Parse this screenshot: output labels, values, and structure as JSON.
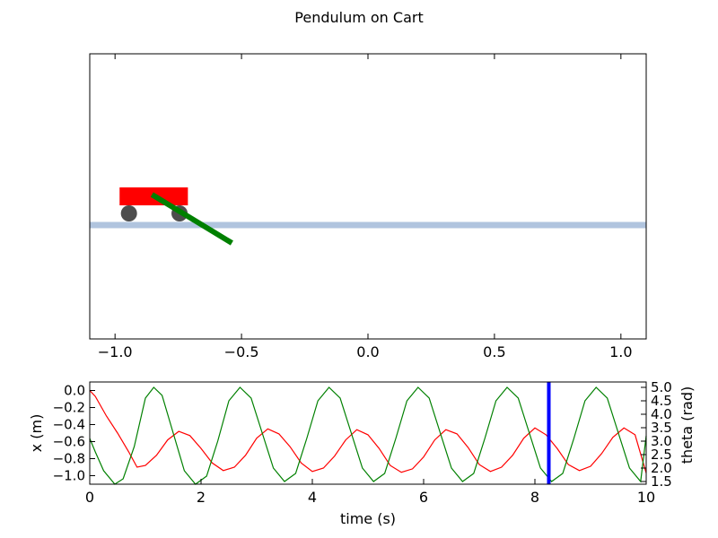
{
  "figure": {
    "title": "Pendulum on Cart"
  },
  "chart_data": [
    {
      "type": "scatter",
      "name": "pendulum-on-cart-animation",
      "title": "Pendulum on Cart",
      "xlim": [
        -1.1,
        1.1
      ],
      "x_ticks": [
        -1.0,
        -0.5,
        0.0,
        0.5,
        1.0
      ],
      "x_tick_labels": [
        "−1.0",
        "−0.5",
        "0.0",
        "0.5",
        "1.0"
      ],
      "y_ticks_visible": false,
      "grid": false,
      "objects": {
        "track": {
          "y": 0.0,
          "color": "#b0c4de"
        },
        "cart": {
          "x_center": -0.847,
          "width": 0.27,
          "color": "#ff0000"
        },
        "wheels": {
          "x": [
            -0.945,
            -0.745
          ],
          "color": "#4d4d4d"
        },
        "pendulum": {
          "pivot_x": -0.847,
          "end_x": -0.538,
          "color": "#008000"
        }
      }
    },
    {
      "type": "line",
      "name": "cart-position-and-angle-history",
      "xlabel": "time (s)",
      "ylabel_left": "x (m)",
      "ylabel_right": "theta (rad)",
      "xlim": [
        0,
        10
      ],
      "ylim_left": [
        -1.1,
        0.1
      ],
      "ylim_right": [
        1.4,
        5.2
      ],
      "x_ticks": [
        0,
        2,
        4,
        6,
        8,
        10
      ],
      "x_tick_labels": [
        "0",
        "2",
        "4",
        "6",
        "8",
        "10"
      ],
      "left_ticks": [
        0.0,
        -0.2,
        -0.4,
        -0.6,
        -0.8,
        -1.0
      ],
      "left_tick_labels": [
        "0.0",
        "−0.2",
        "−0.4",
        "−0.6",
        "−0.8",
        "−1.0"
      ],
      "right_ticks": [
        5.0,
        4.5,
        4.0,
        3.5,
        3.0,
        2.5,
        2.0,
        1.5
      ],
      "right_tick_labels": [
        "5.0",
        "4.5",
        "4.0",
        "3.5",
        "3.0",
        "2.5",
        "2.0",
        "1.5"
      ],
      "current_time_marker": {
        "x": 8.25,
        "color": "#0000ff"
      },
      "series": [
        {
          "axis": "left",
          "color": "#ff0000",
          "x": [
            0,
            0.1,
            0.3,
            0.5,
            0.7,
            0.85,
            1.0,
            1.2,
            1.4,
            1.6,
            1.8,
            2.0,
            2.2,
            2.4,
            2.6,
            2.8,
            3.0,
            3.2,
            3.4,
            3.6,
            3.8,
            4.0,
            4.2,
            4.4,
            4.6,
            4.8,
            5.0,
            5.2,
            5.4,
            5.6,
            5.8,
            6.0,
            6.2,
            6.4,
            6.6,
            6.8,
            7.0,
            7.2,
            7.4,
            7.6,
            7.8,
            8.0,
            8.2,
            8.4,
            8.6,
            8.8,
            9.0,
            9.2,
            9.4,
            9.6,
            9.8,
            10.0
          ],
          "values": [
            0.0,
            -0.07,
            -0.3,
            -0.5,
            -0.72,
            -0.9,
            -0.88,
            -0.76,
            -0.58,
            -0.48,
            -0.53,
            -0.68,
            -0.85,
            -0.94,
            -0.9,
            -0.76,
            -0.56,
            -0.45,
            -0.51,
            -0.66,
            -0.85,
            -0.95,
            -0.91,
            -0.77,
            -0.58,
            -0.46,
            -0.52,
            -0.68,
            -0.88,
            -0.96,
            -0.92,
            -0.78,
            -0.58,
            -0.46,
            -0.51,
            -0.67,
            -0.87,
            -0.95,
            -0.9,
            -0.76,
            -0.56,
            -0.44,
            -0.52,
            -0.68,
            -0.87,
            -0.94,
            -0.89,
            -0.74,
            -0.55,
            -0.44,
            -0.52,
            -0.97
          ]
        },
        {
          "axis": "right",
          "color": "#008000",
          "x": [
            0,
            0.1,
            0.25,
            0.45,
            0.6,
            0.8,
            1.0,
            1.15,
            1.3,
            1.5,
            1.7,
            1.9,
            2.1,
            2.3,
            2.5,
            2.7,
            2.9,
            3.1,
            3.3,
            3.5,
            3.7,
            3.9,
            4.1,
            4.3,
            4.5,
            4.7,
            4.9,
            5.1,
            5.3,
            5.5,
            5.7,
            5.9,
            6.1,
            6.3,
            6.5,
            6.7,
            6.9,
            7.1,
            7.3,
            7.5,
            7.7,
            7.9,
            8.1,
            8.3,
            8.5,
            8.7,
            8.9,
            9.1,
            9.3,
            9.5,
            9.7,
            9.9,
            10.0
          ],
          "values": [
            3.1,
            2.6,
            1.9,
            1.4,
            1.6,
            2.8,
            4.6,
            5.0,
            4.7,
            3.3,
            1.9,
            1.4,
            1.7,
            3.0,
            4.5,
            5.0,
            4.6,
            3.3,
            2.0,
            1.5,
            1.8,
            3.1,
            4.5,
            5.0,
            4.6,
            3.3,
            2.0,
            1.5,
            1.8,
            3.1,
            4.5,
            5.0,
            4.6,
            3.3,
            2.0,
            1.5,
            1.8,
            3.1,
            4.5,
            5.0,
            4.6,
            3.3,
            2.0,
            1.5,
            1.8,
            3.1,
            4.5,
            5.0,
            4.6,
            3.3,
            2.0,
            1.5,
            3.2
          ]
        }
      ]
    }
  ]
}
